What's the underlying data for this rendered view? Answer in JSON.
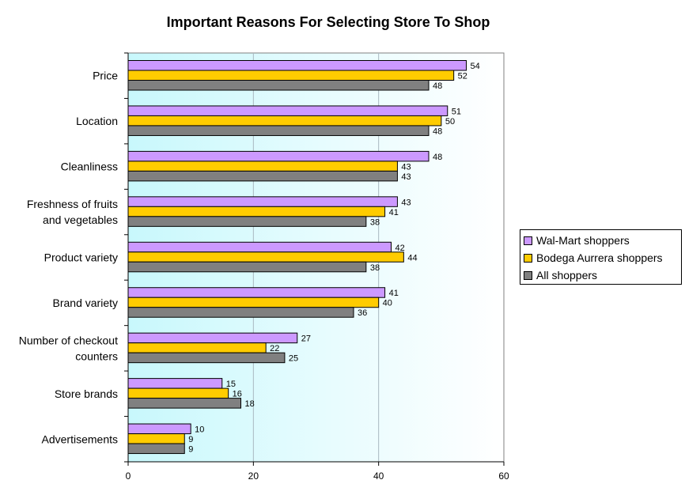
{
  "chart_data": {
    "type": "bar",
    "orientation": "horizontal",
    "title": "Important Reasons For Selecting Store To Shop",
    "xlabel": "",
    "ylabel": "",
    "xlim": [
      0,
      60
    ],
    "x_ticks": [
      "0",
      "20",
      "40",
      "60"
    ],
    "grid": true,
    "legend_position": "right",
    "categories": [
      [
        "Price"
      ],
      [
        "Location"
      ],
      [
        "Cleanliness"
      ],
      [
        "Freshness of fruits",
        "and vegetables"
      ],
      [
        "Product variety"
      ],
      [
        "Brand variety"
      ],
      [
        "Number of checkout",
        "counters"
      ],
      [
        "Store brands"
      ],
      [
        "Advertisements"
      ]
    ],
    "series": [
      {
        "name": "Wal-Mart shoppers",
        "color": "#CC99FF",
        "values": [
          54,
          51,
          48,
          43,
          42,
          41,
          27,
          15,
          10
        ]
      },
      {
        "name": "Bodega Aurrera shoppers",
        "color": "#FFCC00",
        "values": [
          52,
          50,
          43,
          41,
          44,
          40,
          22,
          16,
          9
        ]
      },
      {
        "name": "All shoppers",
        "color": "#808080",
        "values": [
          48,
          48,
          43,
          38,
          38,
          36,
          25,
          18,
          9
        ]
      }
    ]
  }
}
